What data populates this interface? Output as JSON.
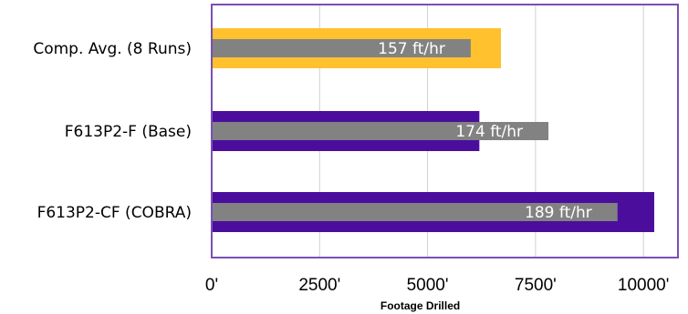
{
  "chart_data": {
    "type": "bar",
    "orientation": "horizontal",
    "title": "",
    "xlabel": "Footage Drilled",
    "ylabel": "",
    "xlim": [
      0,
      10800
    ],
    "x_ticks": [
      0,
      2500,
      5000,
      7500,
      10000
    ],
    "x_tick_labels": [
      "0'",
      "2500'",
      "5000'",
      "7500'",
      "10000'"
    ],
    "grid": "vertical",
    "categories": [
      "Comp. Avg. (8 Runs)",
      "F613P2-F (Base)",
      "F613P2-CF (COBRA)"
    ],
    "series": [
      {
        "values": [
          6700,
          6200,
          10250
        ],
        "colors": [
          "#FFC12E",
          "#4B0E9C",
          "#4B0E9C"
        ]
      },
      {
        "values": [
          6000,
          7800,
          9400
        ],
        "color": "#828282"
      }
    ],
    "data_labels": [
      "157 ft/hr",
      "174 ft/hr",
      "189 ft/hr"
    ],
    "colors": {
      "frame": "#7A4FB5",
      "grid": "#D0D0D0"
    }
  }
}
